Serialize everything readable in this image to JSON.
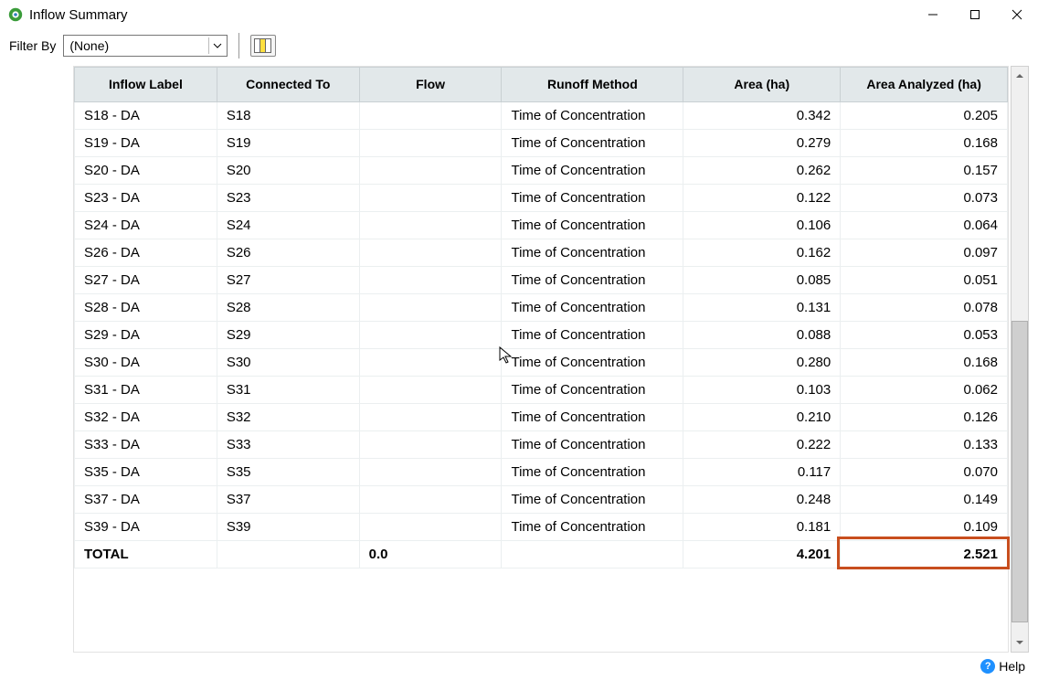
{
  "window": {
    "title": "Inflow Summary"
  },
  "toolbar": {
    "filter_label": "Filter By",
    "filter_value": "(None)"
  },
  "table": {
    "columns": [
      "Inflow Label",
      "Connected To",
      "Flow",
      "Runoff Method",
      "Area (ha)",
      "Area Analyzed (ha)"
    ],
    "rows": [
      {
        "label": "S18 - DA",
        "connected": "S18",
        "flow": "",
        "method": "Time of Concentration",
        "area": "0.342",
        "area_analyzed": "0.205"
      },
      {
        "label": "S19 - DA",
        "connected": "S19",
        "flow": "",
        "method": "Time of Concentration",
        "area": "0.279",
        "area_analyzed": "0.168"
      },
      {
        "label": "S20 - DA",
        "connected": "S20",
        "flow": "",
        "method": "Time of Concentration",
        "area": "0.262",
        "area_analyzed": "0.157"
      },
      {
        "label": "S23 - DA",
        "connected": "S23",
        "flow": "",
        "method": "Time of Concentration",
        "area": "0.122",
        "area_analyzed": "0.073"
      },
      {
        "label": "S24 - DA",
        "connected": "S24",
        "flow": "",
        "method": "Time of Concentration",
        "area": "0.106",
        "area_analyzed": "0.064"
      },
      {
        "label": "S26 - DA",
        "connected": "S26",
        "flow": "",
        "method": "Time of Concentration",
        "area": "0.162",
        "area_analyzed": "0.097"
      },
      {
        "label": "S27 - DA",
        "connected": "S27",
        "flow": "",
        "method": "Time of Concentration",
        "area": "0.085",
        "area_analyzed": "0.051"
      },
      {
        "label": "S28 - DA",
        "connected": "S28",
        "flow": "",
        "method": "Time of Concentration",
        "area": "0.131",
        "area_analyzed": "0.078"
      },
      {
        "label": "S29 - DA",
        "connected": "S29",
        "flow": "",
        "method": "Time of Concentration",
        "area": "0.088",
        "area_analyzed": "0.053"
      },
      {
        "label": "S30 - DA",
        "connected": "S30",
        "flow": "",
        "method": "Time of Concentration",
        "area": "0.280",
        "area_analyzed": "0.168"
      },
      {
        "label": "S31 - DA",
        "connected": "S31",
        "flow": "",
        "method": "Time of Concentration",
        "area": "0.103",
        "area_analyzed": "0.062"
      },
      {
        "label": "S32 - DA",
        "connected": "S32",
        "flow": "",
        "method": "Time of Concentration",
        "area": "0.210",
        "area_analyzed": "0.126"
      },
      {
        "label": "S33 - DA",
        "connected": "S33",
        "flow": "",
        "method": "Time of Concentration",
        "area": "0.222",
        "area_analyzed": "0.133"
      },
      {
        "label": "S35 - DA",
        "connected": "S35",
        "flow": "",
        "method": "Time of Concentration",
        "area": "0.117",
        "area_analyzed": "0.070"
      },
      {
        "label": "S37 - DA",
        "connected": "S37",
        "flow": "",
        "method": "Time of Concentration",
        "area": "0.248",
        "area_analyzed": "0.149"
      },
      {
        "label": "S39 - DA",
        "connected": "S39",
        "flow": "",
        "method": "Time of Concentration",
        "area": "0.181",
        "area_analyzed": "0.109"
      }
    ],
    "total": {
      "label": "TOTAL",
      "connected": "",
      "flow": "0.0",
      "method": "",
      "area": "4.201",
      "area_analyzed": "2.521"
    }
  },
  "footer": {
    "help_label": "Help"
  },
  "highlight": {
    "color": "#c84e1e"
  }
}
